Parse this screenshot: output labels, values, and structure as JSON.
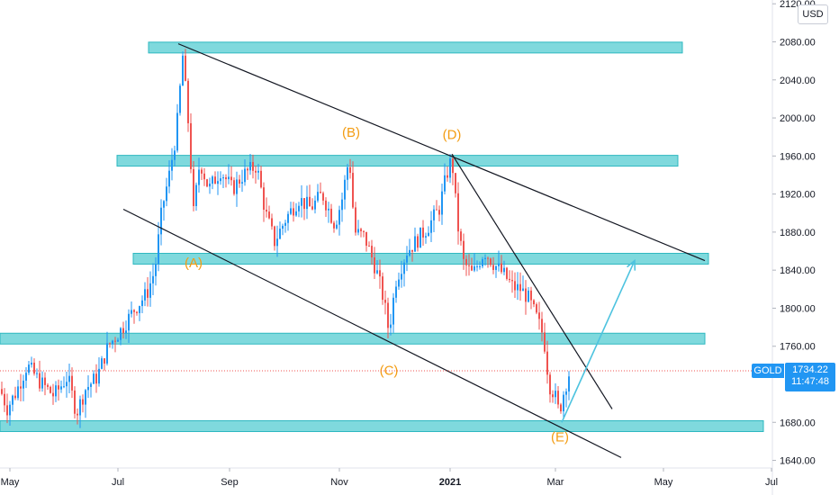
{
  "currency": "USD",
  "symbol": "GOLD",
  "last_price": "1734.22",
  "countdown": "11:47:48",
  "chart_data": {
    "type": "candlestick",
    "y_axis": {
      "ticks": [
        "2120.00",
        "2080.00",
        "2040.00",
        "2000.00",
        "1960.00",
        "1920.00",
        "1880.00",
        "1840.00",
        "1800.00",
        "1760.00",
        "1680.00",
        "1640.00"
      ],
      "tick_values": [
        2120,
        2080,
        2040,
        2000,
        1960,
        1920,
        1880,
        1840,
        1800,
        1760,
        1680,
        1640
      ],
      "range": [
        1632,
        2124
      ]
    },
    "x_axis": {
      "labels": [
        "May",
        "Jul",
        "Sep",
        "Nov",
        "2021",
        "Mar",
        "May",
        "Jul"
      ],
      "bold": [
        false,
        false,
        false,
        false,
        true,
        false,
        false,
        false
      ]
    },
    "price_path": [
      [
        0,
        1715
      ],
      [
        8,
        1695
      ],
      [
        18,
        1712
      ],
      [
        30,
        1740
      ],
      [
        45,
        1722
      ],
      [
        60,
        1708
      ],
      [
        75,
        1728
      ],
      [
        85,
        1690
      ],
      [
        95,
        1715
      ],
      [
        108,
        1728
      ],
      [
        120,
        1760
      ],
      [
        135,
        1778
      ],
      [
        150,
        1800
      ],
      [
        163,
        1815
      ],
      [
        172,
        1840
      ],
      [
        180,
        1905
      ],
      [
        188,
        1940
      ],
      [
        196,
        1985
      ],
      [
        203,
        2065
      ],
      [
        210,
        1985
      ],
      [
        215,
        1900
      ],
      [
        222,
        1955
      ],
      [
        232,
        1925
      ],
      [
        245,
        1945
      ],
      [
        258,
        1925
      ],
      [
        270,
        1940
      ],
      [
        285,
        1950
      ],
      [
        295,
        1900
      ],
      [
        305,
        1870
      ],
      [
        318,
        1895
      ],
      [
        332,
        1915
      ],
      [
        345,
        1905
      ],
      [
        358,
        1920
      ],
      [
        372,
        1888
      ],
      [
        380,
        1915
      ],
      [
        388,
        1960
      ],
      [
        394,
        1880
      ],
      [
        405,
        1875
      ],
      [
        418,
        1840
      ],
      [
        426,
        1810
      ],
      [
        432,
        1775
      ],
      [
        440,
        1830
      ],
      [
        452,
        1860
      ],
      [
        462,
        1870
      ],
      [
        475,
        1885
      ],
      [
        488,
        1905
      ],
      [
        496,
        1940
      ],
      [
        502,
        1958
      ],
      [
        508,
        1890
      ],
      [
        515,
        1848
      ],
      [
        525,
        1835
      ],
      [
        538,
        1860
      ],
      [
        550,
        1845
      ],
      [
        560,
        1835
      ],
      [
        570,
        1822
      ],
      [
        578,
        1820
      ],
      [
        586,
        1812
      ],
      [
        596,
        1790
      ],
      [
        604,
        1770
      ],
      [
        610,
        1720
      ],
      [
        616,
        1710
      ],
      [
        621,
        1690
      ],
      [
        627,
        1715
      ],
      [
        633,
        1734
      ]
    ],
    "support_resistance_zones": [
      2074,
      1955,
      1852,
      1768,
      1676
    ],
    "zone_extents_x": [
      [
        165,
        758
      ],
      [
        130,
        753
      ],
      [
        148,
        787
      ],
      [
        0,
        783
      ],
      [
        0,
        848
      ]
    ],
    "wave_labels": [
      {
        "text": "(A)",
        "x": 215,
        "y": 1843
      },
      {
        "text": "(B)",
        "x": 390,
        "y": 1980
      },
      {
        "text": "(C)",
        "x": 432,
        "y": 1730
      },
      {
        "text": "(D)",
        "x": 502,
        "y": 1978
      },
      {
        "text": "(E)",
        "x": 622,
        "y": 1660
      }
    ],
    "trend_lines": [
      {
        "name": "upper-channel",
        "from": [
          198,
          2078
        ],
        "to": [
          783,
          1850
        ]
      },
      {
        "name": "lower-channel",
        "from": [
          137,
          1904
        ],
        "to": [
          690,
          1643
        ]
      },
      {
        "name": "d-to-e-breakout",
        "from": [
          502,
          1962
        ],
        "to": [
          680,
          1694
        ]
      }
    ],
    "projection_arrow": {
      "from": [
        624,
        1680
      ],
      "to": [
        705,
        1850
      ]
    },
    "current_price_line": 1734.22
  },
  "colors": {
    "zone_fill": "#7fd9dd",
    "zone_stroke": "#2eb8c0",
    "up_candle": "#2196f3",
    "down_candle": "#ef5350",
    "trend_line": "#131722",
    "arrow": "#4dc3df",
    "wave_label": "#f39c12",
    "price_line": "#ef5350",
    "tag": "#2196f3"
  }
}
